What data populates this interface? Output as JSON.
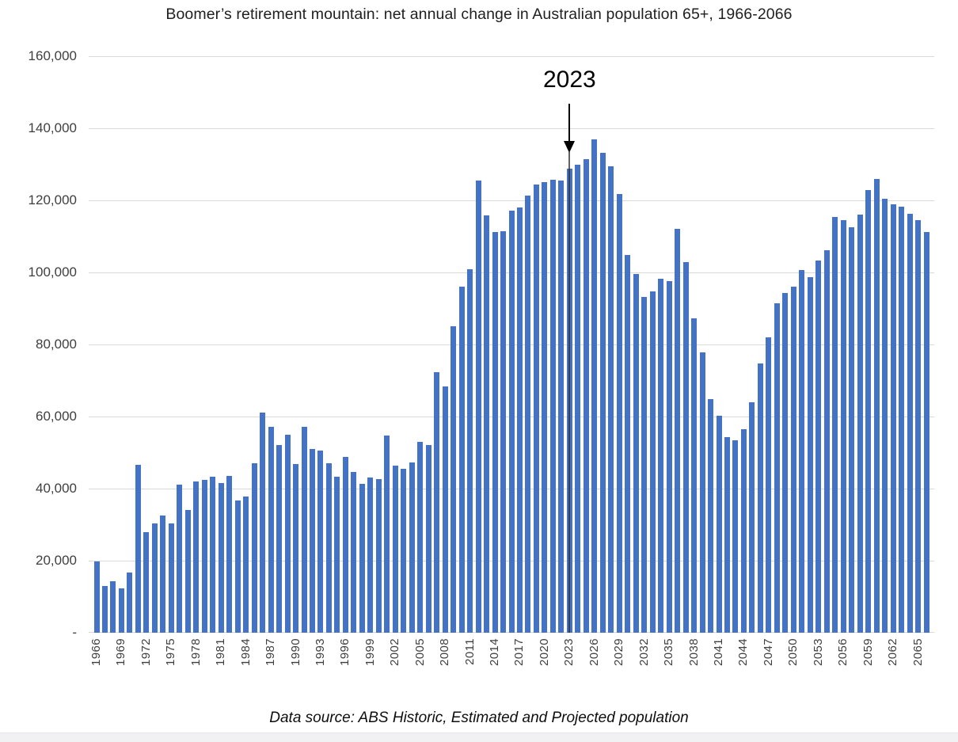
{
  "chart_data": {
    "type": "bar",
    "title": "Boomer’s retirement mountain: net annual change in Australian population 65+, 1966-2066",
    "source_note": "Data source: ABS Historic, Estimated and Projected population",
    "annotation": {
      "label": "2023",
      "target_year": 2023
    },
    "x": [
      1966,
      1967,
      1968,
      1969,
      1970,
      1971,
      1972,
      1973,
      1974,
      1975,
      1976,
      1977,
      1978,
      1979,
      1980,
      1981,
      1982,
      1983,
      1984,
      1985,
      1986,
      1987,
      1988,
      1989,
      1990,
      1991,
      1992,
      1993,
      1994,
      1995,
      1996,
      1997,
      1998,
      1999,
      2000,
      2001,
      2002,
      2003,
      2004,
      2005,
      2006,
      2007,
      2008,
      2009,
      2010,
      2011,
      2012,
      2013,
      2014,
      2015,
      2016,
      2017,
      2018,
      2019,
      2020,
      2021,
      2022,
      2023,
      2024,
      2025,
      2026,
      2027,
      2028,
      2029,
      2030,
      2031,
      2032,
      2033,
      2034,
      2035,
      2036,
      2037,
      2038,
      2039,
      2040,
      2041,
      2042,
      2043,
      2044,
      2045,
      2046,
      2047,
      2048,
      2049,
      2050,
      2051,
      2052,
      2053,
      2054,
      2055,
      2056,
      2057,
      2058,
      2059,
      2060,
      2061,
      2062,
      2063,
      2064,
      2065,
      2066
    ],
    "values": [
      19900,
      13000,
      14200,
      12400,
      16800,
      46500,
      27900,
      30400,
      32500,
      30400,
      41100,
      34000,
      42000,
      42400,
      43400,
      41600,
      43600,
      36800,
      37900,
      47100,
      61000,
      57200,
      52000,
      55000,
      46800,
      57200,
      51000,
      50600,
      47000,
      43400,
      48900,
      44700,
      41400,
      43000,
      42700,
      54800,
      46400,
      45400,
      47200,
      53000,
      52100,
      72400,
      68300,
      85100,
      96000,
      100800,
      125500,
      115800,
      111200,
      111500,
      117100,
      118000,
      121400,
      124300,
      125100,
      125700,
      125400,
      128800,
      129800,
      131500,
      136900,
      133200,
      129400,
      121700,
      104800,
      99600,
      93300,
      94700,
      98300,
      97700,
      112000,
      102900,
      87300,
      77800,
      64800,
      60200,
      54300,
      53400,
      56600,
      64000,
      74800,
      82000,
      91400,
      94400,
      96100,
      100700,
      98700,
      103400,
      106200,
      115400,
      114500,
      112600,
      116000,
      122900,
      125900,
      120500,
      119000,
      118200,
      116300,
      114500,
      111200
    ],
    "ylim": [
      0,
      160000
    ],
    "y_ticks": [
      {
        "value": 160000,
        "label": "160,000"
      },
      {
        "value": 140000,
        "label": "140,000"
      },
      {
        "value": 120000,
        "label": "120,000"
      },
      {
        "value": 100000,
        "label": "100,000"
      },
      {
        "value": 80000,
        "label": "80,000"
      },
      {
        "value": 60000,
        "label": "60,000"
      },
      {
        "value": 40000,
        "label": "40,000"
      },
      {
        "value": 20000,
        "label": "20,000"
      },
      {
        "value": 0,
        "label": "-"
      }
    ],
    "x_tick_labels": [
      "1966",
      "1969",
      "1972",
      "1975",
      "1978",
      "1981",
      "1984",
      "1987",
      "1990",
      "1993",
      "1996",
      "1999",
      "2002",
      "2005",
      "2008",
      "2011",
      "2014",
      "2017",
      "2020",
      "2023",
      "2026",
      "2029",
      "2032",
      "2035",
      "2038",
      "2041",
      "2044",
      "2047",
      "2050",
      "2053",
      "2056",
      "2059",
      "2062",
      "2065"
    ],
    "grid": true,
    "legend": "none",
    "colors": {
      "bar": "#4472C4",
      "gridline": "#d9d9d9",
      "axis_text": "#3f3f3f",
      "annotation": "#000000",
      "annotation_tail": "#2d2d2d",
      "background": "#ffffff",
      "bottom_strip": "#f1f1f3"
    }
  }
}
